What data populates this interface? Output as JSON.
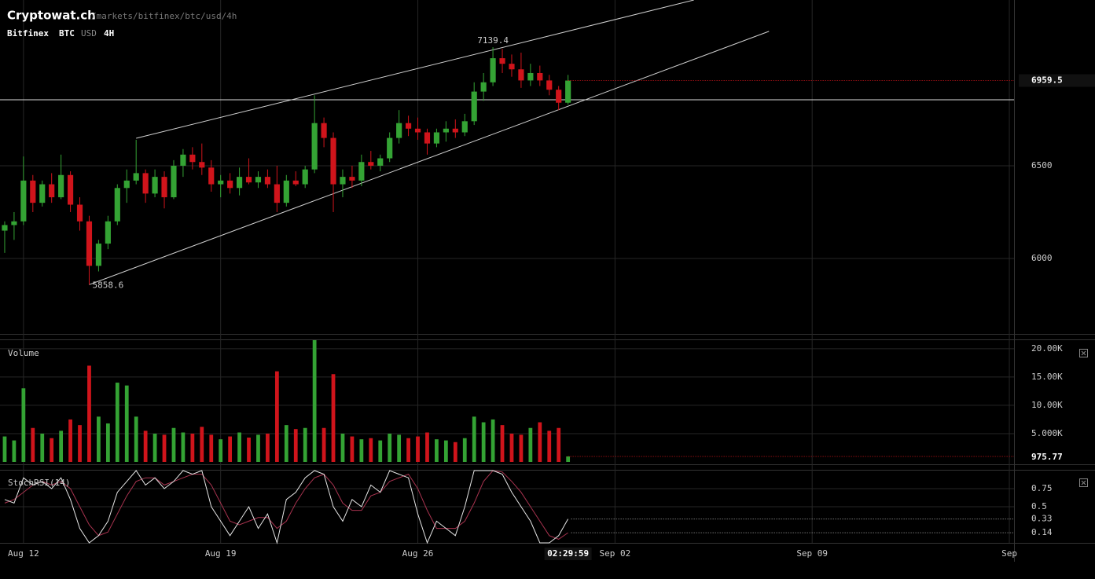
{
  "chart_data": {
    "type": "candlestick",
    "title": "Cryptowat.ch",
    "subtitle": "/markets/bitfinex/btc/usd/4h",
    "exchange": "Bitfinex",
    "base": "BTC",
    "quote": "USD",
    "period": "4H",
    "countdown": "02:29:59",
    "up_color": "#34a334",
    "down_color": "#d0141b",
    "grid": true,
    "xlim": [
      -0.5,
      107.5
    ],
    "xticks": [
      {
        "value": 2,
        "label": "Aug 12"
      },
      {
        "value": 23,
        "label": "Aug 19"
      },
      {
        "value": 44,
        "label": "Aug 26"
      },
      {
        "value": 65,
        "label": "Sep 02"
      },
      {
        "value": 86,
        "label": "Sep 09"
      },
      {
        "value": 107,
        "label": "Sep"
      }
    ],
    "ylim": [
      5593,
      7394
    ],
    "yticks": [
      6000,
      6500
    ],
    "open": [
      6150,
      6180,
      6200,
      6420,
      6300,
      6400,
      6330,
      6450,
      6290,
      6200,
      5960,
      6080,
      6200,
      6380,
      6420,
      6460,
      6350,
      6440,
      6330,
      6500,
      6560,
      6520,
      6490,
      6400,
      6420,
      6380,
      6440,
      6410,
      6440,
      6400,
      6300,
      6420,
      6400,
      6480,
      6730,
      6650,
      6400,
      6440,
      6420,
      6520,
      6500,
      6540,
      6650,
      6730,
      6700,
      6680,
      6620,
      6680,
      6700,
      6680,
      6740,
      6900,
      6950,
      7080,
      7050,
      7020,
      6960,
      7000,
      6960,
      6910,
      6840
    ],
    "high": [
      6200,
      6250,
      6550,
      6450,
      6420,
      6460,
      6560,
      6470,
      6330,
      6230,
      6100,
      6230,
      6400,
      6480,
      6640,
      6480,
      6480,
      6470,
      6530,
      6590,
      6600,
      6620,
      6530,
      6450,
      6460,
      6490,
      6540,
      6470,
      6480,
      6500,
      6450,
      6470,
      6500,
      6880,
      6760,
      6680,
      6480,
      6500,
      6560,
      6580,
      6560,
      6680,
      6800,
      6770,
      6760,
      6700,
      6700,
      6740,
      6750,
      6780,
      6950,
      7000,
      7139.4,
      7130,
      7100,
      7110,
      7050,
      7040,
      6990,
      6930,
      6990
    ],
    "low": [
      6030,
      6100,
      6180,
      6250,
      6280,
      6300,
      6320,
      6250,
      6150,
      5858.6,
      5930,
      6050,
      6180,
      6300,
      6400,
      6300,
      6330,
      6270,
      6320,
      6440,
      6480,
      6450,
      6360,
      6330,
      6350,
      6340,
      6400,
      6380,
      6380,
      6250,
      6280,
      6390,
      6380,
      6460,
      6600,
      6250,
      6330,
      6380,
      6390,
      6480,
      6470,
      6520,
      6620,
      6660,
      6640,
      6560,
      6600,
      6630,
      6650,
      6660,
      6720,
      6850,
      6930,
      7000,
      6980,
      6920,
      6930,
      6930,
      6880,
      6800,
      6830
    ],
    "close": [
      6180,
      6200,
      6420,
      6300,
      6400,
      6330,
      6450,
      6290,
      6200,
      5960,
      6080,
      6200,
      6380,
      6420,
      6460,
      6350,
      6440,
      6330,
      6500,
      6560,
      6520,
      6490,
      6400,
      6420,
      6380,
      6440,
      6410,
      6440,
      6400,
      6300,
      6420,
      6400,
      6480,
      6730,
      6650,
      6400,
      6440,
      6420,
      6520,
      6500,
      6540,
      6650,
      6730,
      6700,
      6680,
      6620,
      6680,
      6700,
      6680,
      6740,
      6900,
      6950,
      7080,
      7050,
      7020,
      6960,
      7000,
      6960,
      6910,
      6840,
      6959.5
    ],
    "horizontal_line": 6856,
    "trend_lines": [
      {
        "x": [
          14,
          73.4
        ],
        "y": [
          6648,
          7394
        ]
      },
      {
        "x": [
          9,
          81.4
        ],
        "y": [
          5858.6,
          7225
        ]
      }
    ],
    "volume": {
      "label": "Volume",
      "ylim": [
        0,
        21500
      ],
      "yticks": [
        {
          "value": 20000,
          "label": "20.00K"
        },
        {
          "value": 15000,
          "label": "15.00K"
        },
        {
          "value": 10000,
          "label": "10.00K"
        },
        {
          "value": 5000,
          "label": "5.000K"
        }
      ],
      "values": [
        4500,
        3800,
        13000,
        6000,
        5000,
        4200,
        5500,
        7500,
        6500,
        17000,
        8000,
        6800,
        14000,
        13500,
        8000,
        5500,
        5000,
        4800,
        6000,
        5200,
        5000,
        6200,
        4800,
        4000,
        4500,
        5200,
        4300,
        4800,
        5000,
        16000,
        6500,
        5800,
        6000,
        21500,
        6000,
        15500,
        5000,
        4500,
        4000,
        4200,
        3800,
        5000,
        4800,
        4200,
        4500,
        5200,
        4000,
        3800,
        3500,
        4200,
        8000,
        7000,
        7500,
        6500,
        5000,
        4800,
        6000,
        7000,
        5500,
        6000,
        975.77
      ]
    },
    "stoch": {
      "label": "StochRSI(14)",
      "ylim": [
        0,
        1
      ],
      "yticks": [
        0.75,
        0.5
      ],
      "k_color": "#e6e6e6",
      "d_color": "#a8334f",
      "k": [
        0.6,
        0.55,
        0.9,
        0.8,
        0.85,
        0.75,
        0.9,
        0.6,
        0.2,
        0,
        0.1,
        0.3,
        0.7,
        0.85,
        1,
        0.8,
        0.9,
        0.75,
        0.85,
        1,
        0.95,
        1,
        0.5,
        0.3,
        0.1,
        0.3,
        0.5,
        0.2,
        0.4,
        0,
        0.6,
        0.7,
        0.9,
        1,
        0.95,
        0.5,
        0.3,
        0.6,
        0.5,
        0.8,
        0.7,
        1,
        0.95,
        0.9,
        0.4,
        0,
        0.3,
        0.2,
        0.1,
        0.5,
        1,
        1,
        1,
        0.95,
        0.7,
        0.5,
        0.3,
        0,
        0,
        0.1,
        0.33
      ],
      "d": [
        0.55,
        0.6,
        0.7,
        0.8,
        0.85,
        0.8,
        0.85,
        0.75,
        0.5,
        0.25,
        0.1,
        0.15,
        0.4,
        0.65,
        0.85,
        0.9,
        0.9,
        0.8,
        0.85,
        0.9,
        0.95,
        0.95,
        0.8,
        0.55,
        0.3,
        0.25,
        0.3,
        0.35,
        0.35,
        0.2,
        0.3,
        0.55,
        0.75,
        0.9,
        0.95,
        0.8,
        0.55,
        0.45,
        0.45,
        0.65,
        0.7,
        0.85,
        0.9,
        0.95,
        0.75,
        0.45,
        0.2,
        0.2,
        0.2,
        0.3,
        0.55,
        0.85,
        1,
        0.98,
        0.85,
        0.7,
        0.5,
        0.3,
        0.1,
        0.05,
        0.14
      ]
    }
  }
}
